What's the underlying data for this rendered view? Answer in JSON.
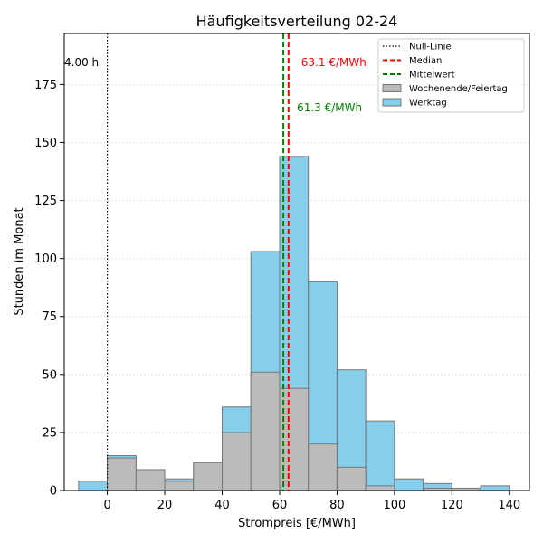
{
  "chart_data": {
    "type": "bar",
    "title": "Häufigkeitsverteilung 02-24",
    "xlabel": "Strompreis [€/MWh]",
    "ylabel": "Stunden im Monat",
    "xlim": [
      -15,
      147
    ],
    "ylim": [
      0,
      197
    ],
    "xticks": [
      0,
      20,
      40,
      60,
      80,
      100,
      120,
      140
    ],
    "yticks": [
      0,
      25,
      50,
      75,
      100,
      125,
      150,
      175
    ],
    "grid": "y-dotted",
    "legend_position": "top-right",
    "bin_width": 10,
    "bin_starts": [
      -10,
      0,
      10,
      20,
      30,
      40,
      50,
      60,
      70,
      80,
      90,
      100,
      110,
      120,
      130
    ],
    "series": [
      {
        "name": "Wochenende/Feiertag",
        "color": "#bbbbbb",
        "values": [
          0,
          14,
          9,
          4,
          12,
          25,
          51,
          44,
          20,
          10,
          2,
          0,
          1,
          1,
          0
        ]
      },
      {
        "name": "Werktag",
        "color": "#87ceeb",
        "values": [
          4,
          15,
          2,
          5,
          12,
          36,
          103,
          144,
          90,
          52,
          30,
          5,
          3,
          0,
          2
        ]
      }
    ],
    "lines": {
      "null_line": {
        "name": "Null-Linie",
        "x": 0,
        "color": "#000000"
      },
      "median": {
        "name": "Median",
        "x": 63.1,
        "color": "#ff0000",
        "label": "63.1 €/MWh"
      },
      "mean": {
        "name": "Mittelwert",
        "x": 61.3,
        "color": "#008000",
        "label": "61.3 €/MWh"
      }
    },
    "annotation_left": "4.00 h"
  }
}
